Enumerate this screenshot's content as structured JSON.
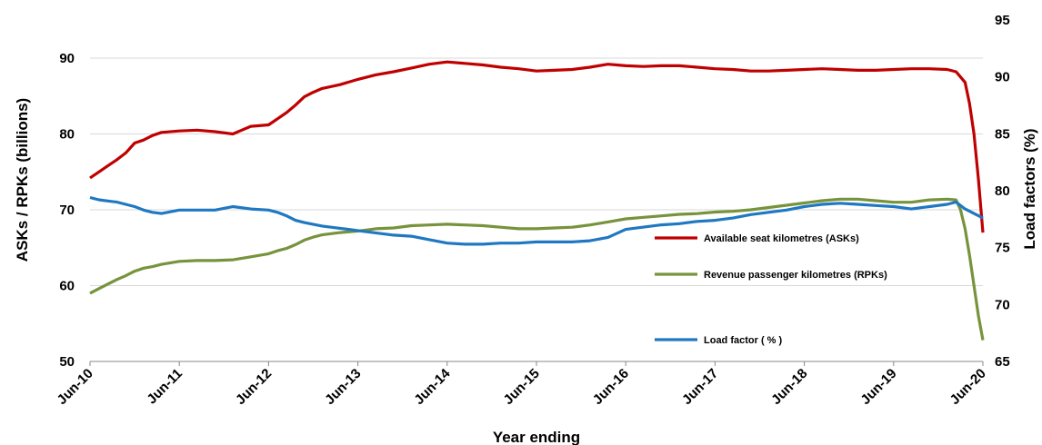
{
  "chart_data": {
    "type": "line",
    "xlabel": "Year ending",
    "ylabel": "ASKs / RPKs (billions)",
    "y2label": "Load factors (%)",
    "ylim": [
      50,
      90
    ],
    "y2lim": [
      65,
      95
    ],
    "grid": "horizontal",
    "legend_position": "right-center",
    "x_ticks": [
      "Jun-10",
      "Jun-11",
      "Jun-12",
      "Jun-13",
      "Jun-14",
      "Jun-15",
      "Jun-16",
      "Jun-17",
      "Jun-18",
      "Jun-19",
      "Jun-20"
    ],
    "y_ticks": [
      50,
      60,
      70,
      80,
      90
    ],
    "y2_ticks": [
      65,
      70,
      75,
      80,
      85,
      90,
      95
    ],
    "series": [
      {
        "name": "Available seat kilometres (ASKs)",
        "color": "#c00000",
        "axis": "left",
        "points": [
          [
            0,
            74.2
          ],
          [
            0.1,
            75.0
          ],
          [
            0.2,
            75.8
          ],
          [
            0.3,
            76.6
          ],
          [
            0.4,
            77.5
          ],
          [
            0.5,
            78.8
          ],
          [
            0.6,
            79.2
          ],
          [
            0.7,
            79.8
          ],
          [
            0.8,
            80.2
          ],
          [
            1,
            80.4
          ],
          [
            1.2,
            80.5
          ],
          [
            1.4,
            80.3
          ],
          [
            1.6,
            80.0
          ],
          [
            1.7,
            80.5
          ],
          [
            1.8,
            81.0
          ],
          [
            2,
            81.2
          ],
          [
            2.1,
            82.0
          ],
          [
            2.2,
            82.8
          ],
          [
            2.3,
            83.8
          ],
          [
            2.4,
            84.9
          ],
          [
            2.5,
            85.5
          ],
          [
            2.6,
            86.0
          ],
          [
            2.8,
            86.5
          ],
          [
            3,
            87.2
          ],
          [
            3.2,
            87.8
          ],
          [
            3.4,
            88.2
          ],
          [
            3.6,
            88.7
          ],
          [
            3.8,
            89.2
          ],
          [
            4,
            89.5
          ],
          [
            4.2,
            89.3
          ],
          [
            4.4,
            89.1
          ],
          [
            4.6,
            88.8
          ],
          [
            4.8,
            88.6
          ],
          [
            5,
            88.3
          ],
          [
            5.2,
            88.4
          ],
          [
            5.4,
            88.5
          ],
          [
            5.6,
            88.8
          ],
          [
            5.8,
            89.2
          ],
          [
            6,
            89.0
          ],
          [
            6.2,
            88.9
          ],
          [
            6.4,
            89.0
          ],
          [
            6.6,
            89.0
          ],
          [
            6.8,
            88.8
          ],
          [
            7,
            88.6
          ],
          [
            7.2,
            88.5
          ],
          [
            7.4,
            88.3
          ],
          [
            7.6,
            88.3
          ],
          [
            7.8,
            88.4
          ],
          [
            8,
            88.5
          ],
          [
            8.2,
            88.6
          ],
          [
            8.4,
            88.5
          ],
          [
            8.6,
            88.4
          ],
          [
            8.8,
            88.4
          ],
          [
            9,
            88.5
          ],
          [
            9.2,
            88.6
          ],
          [
            9.4,
            88.6
          ],
          [
            9.6,
            88.5
          ],
          [
            9.7,
            88.2
          ],
          [
            9.8,
            86.8
          ],
          [
            9.85,
            84.0
          ],
          [
            9.9,
            80.0
          ],
          [
            9.95,
            74.0
          ],
          [
            10,
            67.0
          ]
        ]
      },
      {
        "name": "Revenue passenger kilometres (RPKs)",
        "color": "#77933c",
        "axis": "left",
        "points": [
          [
            0,
            59.0
          ],
          [
            0.1,
            59.6
          ],
          [
            0.2,
            60.2
          ],
          [
            0.3,
            60.8
          ],
          [
            0.4,
            61.3
          ],
          [
            0.5,
            61.9
          ],
          [
            0.6,
            62.3
          ],
          [
            0.7,
            62.5
          ],
          [
            0.8,
            62.8
          ],
          [
            1,
            63.2
          ],
          [
            1.2,
            63.3
          ],
          [
            1.4,
            63.3
          ],
          [
            1.6,
            63.4
          ],
          [
            1.8,
            63.8
          ],
          [
            2,
            64.2
          ],
          [
            2.1,
            64.6
          ],
          [
            2.2,
            64.9
          ],
          [
            2.3,
            65.4
          ],
          [
            2.4,
            66.0
          ],
          [
            2.5,
            66.4
          ],
          [
            2.6,
            66.7
          ],
          [
            2.8,
            67.0
          ],
          [
            3,
            67.2
          ],
          [
            3.2,
            67.5
          ],
          [
            3.4,
            67.6
          ],
          [
            3.6,
            67.9
          ],
          [
            3.8,
            68.0
          ],
          [
            4,
            68.1
          ],
          [
            4.2,
            68.0
          ],
          [
            4.4,
            67.9
          ],
          [
            4.6,
            67.7
          ],
          [
            4.8,
            67.5
          ],
          [
            5,
            67.5
          ],
          [
            5.2,
            67.6
          ],
          [
            5.4,
            67.7
          ],
          [
            5.6,
            68.0
          ],
          [
            5.8,
            68.4
          ],
          [
            6,
            68.8
          ],
          [
            6.2,
            69.0
          ],
          [
            6.4,
            69.2
          ],
          [
            6.6,
            69.4
          ],
          [
            6.8,
            69.5
          ],
          [
            7,
            69.7
          ],
          [
            7.2,
            69.8
          ],
          [
            7.4,
            70.0
          ],
          [
            7.6,
            70.3
          ],
          [
            7.8,
            70.6
          ],
          [
            8,
            70.9
          ],
          [
            8.2,
            71.2
          ],
          [
            8.4,
            71.4
          ],
          [
            8.6,
            71.4
          ],
          [
            8.8,
            71.2
          ],
          [
            9,
            71.0
          ],
          [
            9.2,
            71.0
          ],
          [
            9.4,
            71.3
          ],
          [
            9.6,
            71.4
          ],
          [
            9.7,
            71.3
          ],
          [
            9.75,
            70.0
          ],
          [
            9.8,
            67.5
          ],
          [
            9.85,
            64.0
          ],
          [
            9.9,
            60.0
          ],
          [
            9.95,
            56.0
          ],
          [
            10,
            52.8
          ]
        ]
      },
      {
        "name": "Load factor ( % )",
        "color": "#1f78c1",
        "axis": "right",
        "points": [
          [
            0,
            79.4
          ],
          [
            0.1,
            79.2
          ],
          [
            0.2,
            79.1
          ],
          [
            0.3,
            79.0
          ],
          [
            0.4,
            78.8
          ],
          [
            0.5,
            78.6
          ],
          [
            0.6,
            78.3
          ],
          [
            0.7,
            78.1
          ],
          [
            0.8,
            78.0
          ],
          [
            1,
            78.3
          ],
          [
            1.2,
            78.3
          ],
          [
            1.4,
            78.3
          ],
          [
            1.6,
            78.6
          ],
          [
            1.8,
            78.4
          ],
          [
            2,
            78.3
          ],
          [
            2.1,
            78.1
          ],
          [
            2.2,
            77.8
          ],
          [
            2.3,
            77.4
          ],
          [
            2.4,
            77.2
          ],
          [
            2.6,
            76.9
          ],
          [
            2.8,
            76.7
          ],
          [
            3,
            76.5
          ],
          [
            3.2,
            76.3
          ],
          [
            3.4,
            76.1
          ],
          [
            3.6,
            76.0
          ],
          [
            3.8,
            75.7
          ],
          [
            4,
            75.4
          ],
          [
            4.2,
            75.3
          ],
          [
            4.4,
            75.3
          ],
          [
            4.6,
            75.4
          ],
          [
            4.8,
            75.4
          ],
          [
            5,
            75.5
          ],
          [
            5.2,
            75.5
          ],
          [
            5.4,
            75.5
          ],
          [
            5.6,
            75.6
          ],
          [
            5.8,
            75.9
          ],
          [
            6,
            76.6
          ],
          [
            6.2,
            76.8
          ],
          [
            6.4,
            77.0
          ],
          [
            6.6,
            77.1
          ],
          [
            6.8,
            77.3
          ],
          [
            7,
            77.4
          ],
          [
            7.2,
            77.6
          ],
          [
            7.4,
            77.9
          ],
          [
            7.6,
            78.1
          ],
          [
            7.8,
            78.3
          ],
          [
            8,
            78.6
          ],
          [
            8.2,
            78.8
          ],
          [
            8.4,
            78.9
          ],
          [
            8.6,
            78.8
          ],
          [
            8.8,
            78.7
          ],
          [
            9,
            78.6
          ],
          [
            9.2,
            78.4
          ],
          [
            9.4,
            78.6
          ],
          [
            9.6,
            78.8
          ],
          [
            9.7,
            79.0
          ],
          [
            9.8,
            78.4
          ],
          [
            9.9,
            78.0
          ],
          [
            10,
            77.6
          ]
        ]
      }
    ]
  }
}
